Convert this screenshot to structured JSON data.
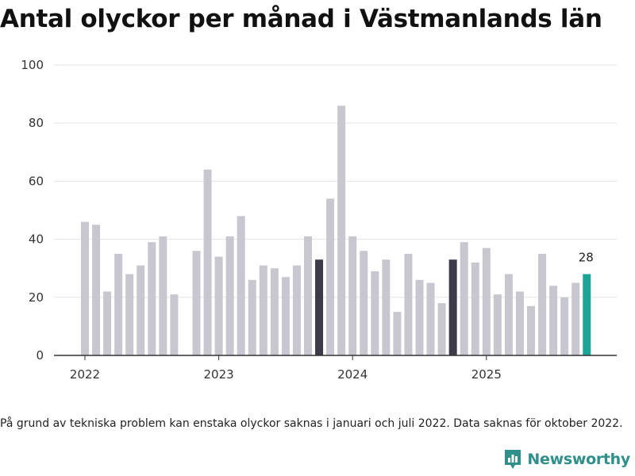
{
  "title": "Antal olyckor per månad i Västmanlands län",
  "note": "På grund av tekniska problem kan enstaka olyckor saknas i januari och juli 2022. Data saknas för oktober 2022.",
  "brand": {
    "name": "Newsworthy",
    "icon": "newsworthy-logo-icon",
    "color": "#2f8f8a"
  },
  "chart_data": {
    "type": "bar",
    "title": "Antal olyckor per månad i Västmanlands län",
    "xlabel": "",
    "ylabel": "",
    "ylim": [
      0,
      100
    ],
    "yticks": [
      0,
      20,
      40,
      60,
      80,
      100
    ],
    "grid": true,
    "x_ticks": [
      {
        "label": "2022",
        "at_index": 0
      },
      {
        "label": "2023",
        "at_index": 12
      },
      {
        "label": "2024",
        "at_index": 24
      },
      {
        "label": "2025",
        "at_index": 36
      }
    ],
    "colors": {
      "default": "#c8c7d0",
      "highlight": "#3d3b4a",
      "latest": "#1aa596",
      "grid": "#e3e3e3",
      "axis": "#333333"
    },
    "categories": [
      "2022-01",
      "2022-02",
      "2022-03",
      "2022-04",
      "2022-05",
      "2022-06",
      "2022-07",
      "2022-08",
      "2022-09",
      "2022-10",
      "2022-11",
      "2022-12",
      "2023-01",
      "2023-02",
      "2023-03",
      "2023-04",
      "2023-05",
      "2023-06",
      "2023-07",
      "2023-08",
      "2023-09",
      "2023-10",
      "2023-11",
      "2023-12",
      "2024-01",
      "2024-02",
      "2024-03",
      "2024-04",
      "2024-05",
      "2024-06",
      "2024-07",
      "2024-08",
      "2024-09",
      "2024-10",
      "2024-11",
      "2024-12",
      "2025-01",
      "2025-02",
      "2025-03",
      "2025-04",
      "2025-05",
      "2025-06",
      "2025-07",
      "2025-08",
      "2025-09",
      "2025-10"
    ],
    "values": [
      46,
      45,
      22,
      35,
      28,
      31,
      39,
      41,
      21,
      null,
      36,
      64,
      34,
      41,
      48,
      26,
      31,
      30,
      27,
      31,
      41,
      33,
      54,
      86,
      41,
      36,
      29,
      33,
      15,
      35,
      26,
      25,
      18,
      33,
      39,
      32,
      37,
      21,
      28,
      22,
      17,
      35,
      24,
      20,
      25,
      28
    ],
    "highlight_indices": [
      21,
      33
    ],
    "latest_index": 45,
    "labeled_points": [
      {
        "index": 45,
        "label": "28"
      }
    ]
  }
}
